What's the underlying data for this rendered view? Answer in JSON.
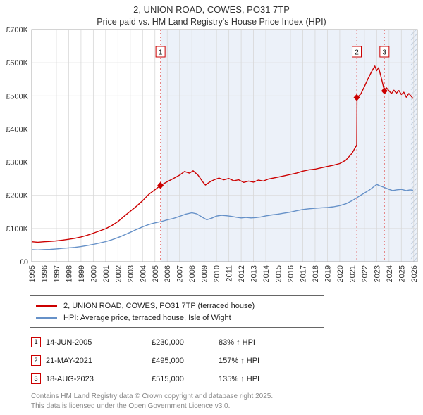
{
  "chart_data": {
    "type": "line",
    "title": "2, UNION ROAD, COWES, PO31 7TP",
    "subtitle": "Price paid vs. HM Land Registry's House Price Index (HPI)",
    "xlabel": "",
    "ylabel": "",
    "x_range": [
      1995,
      2026.3
    ],
    "y_range": [
      0,
      700000
    ],
    "x_ticks": [
      1995,
      1996,
      1997,
      1998,
      1999,
      2000,
      2001,
      2002,
      2003,
      2004,
      2005,
      2006,
      2007,
      2008,
      2009,
      2010,
      2011,
      2012,
      2013,
      2014,
      2015,
      2016,
      2017,
      2018,
      2019,
      2020,
      2021,
      2022,
      2023,
      2024,
      2025,
      2026
    ],
    "y_ticks": [
      "£0",
      "£100K",
      "£200K",
      "£300K",
      "£400K",
      "£500K",
      "£600K",
      "£700K"
    ],
    "grid": true,
    "legend_position": "bottom",
    "colors": {
      "grid": "#d8d8d8",
      "axis": "#a8a8a8",
      "shade": "rgba(120,155,210,0.14)",
      "sale_line": "#e57373",
      "marker": "#cc0000",
      "box_border": "#cc0000"
    },
    "shaded_from": 2005.45,
    "hatch_from": 2025.78,
    "legend": [
      {
        "label": "2, UNION ROAD, COWES, PO31 7TP (terraced house)",
        "color": "#cc0000"
      },
      {
        "label": "HPI: Average price, terraced house, Isle of Wight",
        "color": "#6691c8"
      }
    ],
    "sales": [
      {
        "label": "1",
        "x": 2005.45,
        "y": 230000,
        "date": "14-JUN-2005",
        "price": "£230,000"
      },
      {
        "label": "2",
        "x": 2021.38,
        "y": 495000,
        "date": "21-MAY-2021",
        "price": "£495,000"
      },
      {
        "label": "3",
        "x": 2023.63,
        "y": 515000,
        "date": "18-AUG-2023",
        "price": "£515,000"
      }
    ],
    "series": [
      {
        "name": "2, UNION ROAD, COWES, PO31 7TP (terraced house)",
        "color": "#cc0000",
        "points": [
          [
            1995.0,
            60000
          ],
          [
            1995.5,
            58500
          ],
          [
            1996.0,
            60000
          ],
          [
            1996.5,
            61000
          ],
          [
            1997.0,
            62500
          ],
          [
            1997.5,
            65000
          ],
          [
            1998.0,
            67500
          ],
          [
            1998.5,
            70500
          ],
          [
            1999.0,
            74500
          ],
          [
            1999.5,
            79500
          ],
          [
            2000.0,
            86000
          ],
          [
            2000.5,
            92500
          ],
          [
            2001.0,
            99500
          ],
          [
            2001.5,
            109000
          ],
          [
            2002.0,
            121000
          ],
          [
            2002.5,
            137000
          ],
          [
            2003.0,
            152000
          ],
          [
            2003.5,
            167000
          ],
          [
            2004.0,
            184000
          ],
          [
            2004.5,
            203000
          ],
          [
            2005.0,
            217000
          ],
          [
            2005.45,
            230000
          ],
          [
            2006.0,
            241000
          ],
          [
            2006.5,
            251000
          ],
          [
            2007.0,
            261000
          ],
          [
            2007.4,
            272000
          ],
          [
            2007.8,
            267000
          ],
          [
            2008.1,
            274000
          ],
          [
            2008.5,
            261000
          ],
          [
            2008.9,
            240000
          ],
          [
            2009.1,
            231000
          ],
          [
            2009.4,
            239000
          ],
          [
            2009.8,
            247000
          ],
          [
            2010.2,
            252000
          ],
          [
            2010.6,
            247000
          ],
          [
            2011.0,
            251000
          ],
          [
            2011.4,
            244000
          ],
          [
            2011.8,
            247000
          ],
          [
            2012.2,
            239000
          ],
          [
            2012.6,
            243000
          ],
          [
            2013.0,
            240000
          ],
          [
            2013.4,
            246000
          ],
          [
            2013.8,
            243000
          ],
          [
            2014.2,
            249000
          ],
          [
            2014.6,
            252000
          ],
          [
            2015.0,
            255000
          ],
          [
            2015.5,
            259000
          ],
          [
            2016.0,
            263000
          ],
          [
            2016.5,
            267000
          ],
          [
            2017.0,
            273000
          ],
          [
            2017.5,
            277000
          ],
          [
            2018.0,
            279000
          ],
          [
            2018.5,
            283000
          ],
          [
            2019.0,
            287000
          ],
          [
            2019.5,
            291000
          ],
          [
            2020.0,
            296000
          ],
          [
            2020.5,
            306000
          ],
          [
            2021.0,
            327000
          ],
          [
            2021.38,
            352000
          ],
          [
            2021.4,
            495000
          ],
          [
            2021.7,
            505000
          ],
          [
            2022.0,
            528000
          ],
          [
            2022.3,
            552000
          ],
          [
            2022.6,
            574000
          ],
          [
            2022.85,
            590000
          ],
          [
            2023.0,
            576000
          ],
          [
            2023.15,
            585000
          ],
          [
            2023.35,
            558000
          ],
          [
            2023.63,
            515000
          ],
          [
            2023.8,
            524000
          ],
          [
            2024.0,
            515000
          ],
          [
            2024.2,
            507000
          ],
          [
            2024.4,
            517000
          ],
          [
            2024.6,
            508000
          ],
          [
            2024.8,
            516000
          ],
          [
            2025.0,
            504000
          ],
          [
            2025.2,
            511000
          ],
          [
            2025.4,
            496000
          ],
          [
            2025.6,
            507000
          ],
          [
            2025.8,
            499000
          ],
          [
            2025.95,
            492000
          ]
        ]
      },
      {
        "name": "HPI: Average price, terraced house, Isle of Wight",
        "color": "#6691c8",
        "points": [
          [
            1995.0,
            36000
          ],
          [
            1995.5,
            35500
          ],
          [
            1996.0,
            36500
          ],
          [
            1996.5,
            37000
          ],
          [
            1997.0,
            38500
          ],
          [
            1997.5,
            40000
          ],
          [
            1998.0,
            41500
          ],
          [
            1998.5,
            43000
          ],
          [
            1999.0,
            45500
          ],
          [
            1999.5,
            48500
          ],
          [
            2000.0,
            52000
          ],
          [
            2000.5,
            56000
          ],
          [
            2001.0,
            60500
          ],
          [
            2001.5,
            66000
          ],
          [
            2002.0,
            72500
          ],
          [
            2002.5,
            80500
          ],
          [
            2003.0,
            88500
          ],
          [
            2003.5,
            97000
          ],
          [
            2004.0,
            105000
          ],
          [
            2004.5,
            112000
          ],
          [
            2005.0,
            117000
          ],
          [
            2005.5,
            121000
          ],
          [
            2006.0,
            126000
          ],
          [
            2006.5,
            130500
          ],
          [
            2007.0,
            136500
          ],
          [
            2007.5,
            143500
          ],
          [
            2008.0,
            147500
          ],
          [
            2008.4,
            144000
          ],
          [
            2008.8,
            135000
          ],
          [
            2009.2,
            126500
          ],
          [
            2009.6,
            131000
          ],
          [
            2010.0,
            137500
          ],
          [
            2010.4,
            140000
          ],
          [
            2010.8,
            138500
          ],
          [
            2011.2,
            136500
          ],
          [
            2011.6,
            134000
          ],
          [
            2012.0,
            132000
          ],
          [
            2012.4,
            133500
          ],
          [
            2012.8,
            132000
          ],
          [
            2013.2,
            133000
          ],
          [
            2013.6,
            135000
          ],
          [
            2014.0,
            138000
          ],
          [
            2014.5,
            141000
          ],
          [
            2015.0,
            143500
          ],
          [
            2015.5,
            146500
          ],
          [
            2016.0,
            149500
          ],
          [
            2016.5,
            153500
          ],
          [
            2017.0,
            157500
          ],
          [
            2017.5,
            159500
          ],
          [
            2018.0,
            161000
          ],
          [
            2018.5,
            162500
          ],
          [
            2019.0,
            163500
          ],
          [
            2019.5,
            165500
          ],
          [
            2020.0,
            169000
          ],
          [
            2020.5,
            174500
          ],
          [
            2021.0,
            184000
          ],
          [
            2021.5,
            195500
          ],
          [
            2022.0,
            207000
          ],
          [
            2022.4,
            216000
          ],
          [
            2022.8,
            227000
          ],
          [
            2023.0,
            233000
          ],
          [
            2023.3,
            228000
          ],
          [
            2023.6,
            224000
          ],
          [
            2024.0,
            218000
          ],
          [
            2024.3,
            214500
          ],
          [
            2024.6,
            216500
          ],
          [
            2025.0,
            218000
          ],
          [
            2025.4,
            214500
          ],
          [
            2025.7,
            216500
          ],
          [
            2025.95,
            215500
          ]
        ]
      }
    ]
  },
  "transactions": [
    {
      "num": "1",
      "date": "14-JUN-2005",
      "price": "£230,000",
      "hpi": "83% ↑ HPI"
    },
    {
      "num": "2",
      "date": "21-MAY-2021",
      "price": "£495,000",
      "hpi": "157% ↑ HPI"
    },
    {
      "num": "3",
      "date": "18-AUG-2023",
      "price": "£515,000",
      "hpi": "135% ↑ HPI"
    }
  ],
  "footer": [
    "Contains HM Land Registry data © Crown copyright and database right 2025.",
    "This data is licensed under the Open Government Licence v3.0."
  ]
}
